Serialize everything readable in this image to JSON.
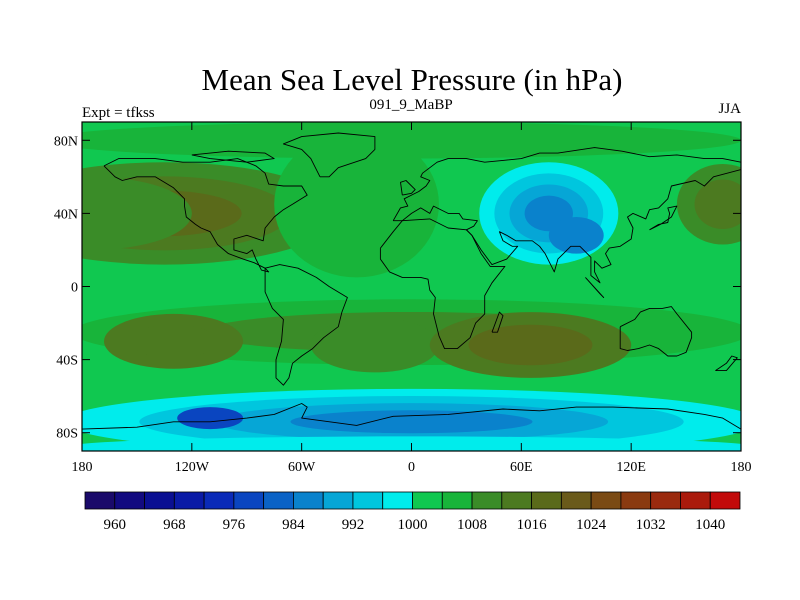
{
  "chart_data": {
    "type": "heatmap",
    "title": "Mean Sea Level Pressure (in hPa)",
    "subtitle_left": "Expt = tfkss",
    "subtitle_center": "091_9_MaBP",
    "subtitle_right": "JJA",
    "xlim": [
      -180,
      180
    ],
    "ylim": [
      -90,
      90
    ],
    "x_ticks": [
      {
        "value": -180,
        "label": "180"
      },
      {
        "value": -120,
        "label": "120W"
      },
      {
        "value": -60,
        "label": "60W"
      },
      {
        "value": 0,
        "label": "0"
      },
      {
        "value": 60,
        "label": "60E"
      },
      {
        "value": 120,
        "label": "120E"
      },
      {
        "value": 180,
        "label": "180"
      }
    ],
    "y_ticks": [
      {
        "value": 80,
        "label": "80N"
      },
      {
        "value": 40,
        "label": "40N"
      },
      {
        "value": 0,
        "label": "0"
      },
      {
        "value": -40,
        "label": "40S"
      },
      {
        "value": -80,
        "label": "80S"
      }
    ],
    "colorbar": {
      "levels": [
        956,
        960,
        964,
        968,
        972,
        976,
        980,
        984,
        988,
        992,
        996,
        1000,
        1004,
        1008,
        1012,
        1016,
        1020,
        1024,
        1028,
        1032,
        1036,
        1040,
        1044
      ],
      "labels": [
        {
          "value": 960,
          "label": "960"
        },
        {
          "value": 968,
          "label": "968"
        },
        {
          "value": 976,
          "label": "976"
        },
        {
          "value": 984,
          "label": "984"
        },
        {
          "value": 992,
          "label": "992"
        },
        {
          "value": 1000,
          "label": "1000"
        },
        {
          "value": 1008,
          "label": "1008"
        },
        {
          "value": 1016,
          "label": "1016"
        },
        {
          "value": 1024,
          "label": "1024"
        },
        {
          "value": 1032,
          "label": "1032"
        },
        {
          "value": 1040,
          "label": "1040"
        }
      ],
      "colors": [
        "#1a0a6a",
        "#120a80",
        "#0a0f92",
        "#0a1aa6",
        "#0a2ab8",
        "#0a45c0",
        "#0a62c6",
        "#0a82cc",
        "#06a6d6",
        "#00c6de",
        "#00ecec",
        "#10c850",
        "#18b43a",
        "#3a8c28",
        "#4c7a20",
        "#5a6a1a",
        "#6a5a1a",
        "#7a4a14",
        "#8a3a10",
        "#9a2a0e",
        "#aa1a0c",
        "#c20a0a"
      ]
    },
    "field": {
      "background": 1002,
      "features": [
        {
          "name": "north-pacific-high",
          "lon": -135,
          "lat": 40,
          "dlon": 95,
          "dlat": 28,
          "bands": [
            1008,
            1012,
            1016
          ]
        },
        {
          "name": "north-atlantic-high",
          "lon": -30,
          "lat": 45,
          "dlon": 45,
          "dlat": 40,
          "bands": [
            1006
          ]
        },
        {
          "name": "pacific-subtropical-ridge",
          "lon": -175,
          "lat": 40,
          "dlon": 55,
          "dlat": 20,
          "bands": [
            1010
          ]
        },
        {
          "name": "north-pacific-west-high",
          "lon": 170,
          "lat": 45,
          "dlon": 25,
          "dlat": 22,
          "bands": [
            1008,
            1014
          ]
        },
        {
          "name": "arctic-ridge",
          "lon": -10,
          "lat": 80,
          "dlon": 190,
          "dlat": 10,
          "bands": [
            1006
          ]
        },
        {
          "name": "asian-low",
          "lon": 75,
          "lat": 40,
          "dlon": 38,
          "dlat": 28,
          "bands": [
            996,
            992,
            988,
            984
          ]
        },
        {
          "name": "asian-low-core",
          "lon": 90,
          "lat": 28,
          "dlon": 15,
          "dlat": 10,
          "bands": [
            984
          ]
        },
        {
          "name": "south-hemisphere-ridge",
          "lon": 0,
          "lat": -25,
          "dlon": 185,
          "dlat": 18,
          "bands": [
            1006,
            1008
          ]
        },
        {
          "name": "south-pacific-high",
          "lon": -130,
          "lat": -30,
          "dlon": 38,
          "dlat": 15,
          "bands": [
            1012,
            1014
          ]
        },
        {
          "name": "south-atlantic-high",
          "lon": -20,
          "lat": -32,
          "dlon": 35,
          "dlat": 15,
          "bands": [
            1010
          ]
        },
        {
          "name": "indian-ocean-high",
          "lon": 65,
          "lat": -32,
          "dlon": 55,
          "dlat": 18,
          "bands": [
            1012,
            1016
          ]
        },
        {
          "name": "southern-trough",
          "lon": 0,
          "lat": -74,
          "dlon": 190,
          "dlat": 18,
          "bands": [
            996,
            992,
            988,
            984
          ]
        },
        {
          "name": "southern-trough-deep",
          "lon": -110,
          "lat": -72,
          "dlon": 18,
          "dlat": 6,
          "bands": [
            976
          ]
        },
        {
          "name": "antarctic-coast",
          "lon": 0,
          "lat": -88,
          "dlon": 190,
          "dlat": 6,
          "bands": [
            996
          ]
        }
      ]
    },
    "coastlines": [
      [
        [
          -168,
          66
        ],
        [
          -160,
          70
        ],
        [
          -140,
          70
        ],
        [
          -125,
          68
        ],
        [
          -110,
          68
        ],
        [
          -95,
          70
        ],
        [
          -85,
          66
        ],
        [
          -80,
          62
        ],
        [
          -78,
          56
        ],
        [
          -70,
          55
        ],
        [
          -60,
          55
        ],
        [
          -57,
          50
        ],
        [
          -65,
          45
        ],
        [
          -70,
          42
        ],
        [
          -75,
          38
        ],
        [
          -80,
          32
        ],
        [
          -81,
          25
        ],
        [
          -90,
          28
        ],
        [
          -97,
          26
        ],
        [
          -97,
          20
        ],
        [
          -90,
          18
        ],
        [
          -87,
          20
        ],
        [
          -85,
          15
        ],
        [
          -82,
          9
        ],
        [
          -78,
          8
        ],
        [
          -80,
          10
        ],
        [
          -86,
          13
        ],
        [
          -92,
          15
        ],
        [
          -100,
          18
        ],
        [
          -106,
          23
        ],
        [
          -110,
          30
        ],
        [
          -115,
          32
        ],
        [
          -118,
          34
        ],
        [
          -123,
          38
        ],
        [
          -124,
          44
        ],
        [
          -124,
          48
        ],
        [
          -130,
          54
        ],
        [
          -140,
          60
        ],
        [
          -150,
          60
        ],
        [
          -158,
          58
        ],
        [
          -162,
          60
        ],
        [
          -165,
          63
        ],
        [
          -168,
          66
        ]
      ],
      [
        [
          -80,
          10
        ],
        [
          -72,
          12
        ],
        [
          -62,
          10
        ],
        [
          -52,
          5
        ],
        [
          -45,
          0
        ],
        [
          -35,
          -6
        ],
        [
          -38,
          -14
        ],
        [
          -40,
          -22
        ],
        [
          -48,
          -28
        ],
        [
          -54,
          -34
        ],
        [
          -60,
          -38
        ],
        [
          -65,
          -42
        ],
        [
          -67,
          -50
        ],
        [
          -70,
          -54
        ],
        [
          -74,
          -50
        ],
        [
          -74,
          -40
        ],
        [
          -71,
          -30
        ],
        [
          -70,
          -18
        ],
        [
          -76,
          -12
        ],
        [
          -80,
          -3
        ],
        [
          -80,
          10
        ]
      ],
      [
        [
          -10,
          36
        ],
        [
          -6,
          43
        ],
        [
          -2,
          44
        ],
        [
          -4,
          48
        ],
        [
          0,
          50
        ],
        [
          4,
          52
        ],
        [
          8,
          55
        ],
        [
          10,
          58
        ],
        [
          5,
          60
        ],
        [
          6,
          62
        ],
        [
          14,
          68
        ],
        [
          20,
          70
        ],
        [
          30,
          70
        ],
        [
          40,
          68
        ],
        [
          50,
          69
        ],
        [
          60,
          70
        ],
        [
          70,
          73
        ],
        [
          80,
          73
        ],
        [
          100,
          76
        ],
        [
          115,
          74
        ],
        [
          130,
          71
        ],
        [
          145,
          72
        ],
        [
          160,
          70
        ],
        [
          170,
          70
        ],
        [
          180,
          68
        ],
        [
          180,
          64
        ],
        [
          165,
          60
        ],
        [
          160,
          55
        ],
        [
          155,
          58
        ],
        [
          142,
          55
        ],
        [
          140,
          48
        ],
        [
          135,
          43
        ],
        [
          130,
          42
        ],
        [
          128,
          37
        ],
        [
          121,
          40
        ],
        [
          118,
          38
        ],
        [
          121,
          32
        ],
        [
          120,
          26
        ],
        [
          114,
          22
        ],
        [
          108,
          21
        ],
        [
          106,
          18
        ],
        [
          109,
          12
        ],
        [
          104,
          10
        ],
        [
          100,
          14
        ],
        [
          100,
          8
        ],
        [
          103,
          2
        ],
        [
          98,
          6
        ],
        [
          98,
          16
        ],
        [
          92,
          22
        ],
        [
          87,
          22
        ],
        [
          80,
          15
        ],
        [
          78,
          8
        ],
        [
          73,
          18
        ],
        [
          70,
          22
        ],
        [
          66,
          25
        ],
        [
          57,
          25
        ],
        [
          52,
          28
        ],
        [
          48,
          30
        ],
        [
          50,
          25
        ],
        [
          55,
          22
        ],
        [
          58,
          22
        ],
        [
          52,
          15
        ],
        [
          44,
          12
        ],
        [
          38,
          20
        ],
        [
          33,
          28
        ],
        [
          30,
          31
        ],
        [
          34,
          33
        ],
        [
          36,
          36
        ],
        [
          28,
          37
        ],
        [
          26,
          40
        ],
        [
          20,
          40
        ],
        [
          12,
          44
        ],
        [
          10,
          40
        ],
        [
          5,
          43
        ],
        [
          0,
          40
        ],
        [
          -5,
          36
        ],
        [
          -10,
          36
        ]
      ],
      [
        [
          -17,
          21
        ],
        [
          -17,
          15
        ],
        [
          -12,
          8
        ],
        [
          -5,
          5
        ],
        [
          5,
          5
        ],
        [
          9,
          4
        ],
        [
          10,
          -2
        ],
        [
          13,
          -6
        ],
        [
          12,
          -15
        ],
        [
          15,
          -27
        ],
        [
          18,
          -34
        ],
        [
          25,
          -34
        ],
        [
          32,
          -28
        ],
        [
          35,
          -20
        ],
        [
          40,
          -15
        ],
        [
          40,
          -5
        ],
        [
          44,
          2
        ],
        [
          51,
          11
        ],
        [
          43,
          11
        ],
        [
          38,
          18
        ],
        [
          33,
          28
        ],
        [
          30,
          31
        ],
        [
          20,
          32
        ],
        [
          10,
          37
        ],
        [
          -5,
          36
        ],
        [
          -10,
          30
        ],
        [
          -17,
          21
        ]
      ],
      [
        [
          114,
          -22
        ],
        [
          114,
          -34
        ],
        [
          118,
          -35
        ],
        [
          124,
          -34
        ],
        [
          130,
          -32
        ],
        [
          135,
          -34
        ],
        [
          140,
          -38
        ],
        [
          145,
          -38
        ],
        [
          150,
          -36
        ],
        [
          153,
          -28
        ],
        [
          153,
          -25
        ],
        [
          145,
          -15
        ],
        [
          142,
          -11
        ],
        [
          137,
          -12
        ],
        [
          130,
          -12
        ],
        [
          125,
          -14
        ],
        [
          122,
          -18
        ],
        [
          114,
          -22
        ]
      ],
      [
        [
          -180,
          -78
        ],
        [
          -150,
          -77
        ],
        [
          -130,
          -74
        ],
        [
          -110,
          -74
        ],
        [
          -90,
          -72
        ],
        [
          -75,
          -70
        ],
        [
          -60,
          -64
        ],
        [
          -57,
          -66
        ],
        [
          -60,
          -72
        ],
        [
          -30,
          -76
        ],
        [
          -10,
          -71
        ],
        [
          20,
          -70
        ],
        [
          50,
          -67
        ],
        [
          70,
          -68
        ],
        [
          90,
          -66
        ],
        [
          110,
          -66
        ],
        [
          140,
          -67
        ],
        [
          160,
          -70
        ],
        [
          170,
          -72
        ],
        [
          180,
          -78
        ]
      ],
      [
        [
          -50,
          60
        ],
        [
          -45,
          60
        ],
        [
          -40,
          65
        ],
        [
          -25,
          70
        ],
        [
          -20,
          75
        ],
        [
          -20,
          82
        ],
        [
          -40,
          84
        ],
        [
          -60,
          82
        ],
        [
          -70,
          78
        ],
        [
          -60,
          75
        ],
        [
          -55,
          70
        ],
        [
          -50,
          60
        ]
      ],
      [
        [
          -5,
          50
        ],
        [
          0,
          51
        ],
        [
          2,
          53
        ],
        [
          -3,
          58
        ],
        [
          -6,
          57
        ],
        [
          -5,
          50
        ]
      ],
      [
        [
          130,
          31
        ],
        [
          135,
          34
        ],
        [
          140,
          35
        ],
        [
          141,
          40
        ],
        [
          140,
          43
        ],
        [
          145,
          44
        ],
        [
          142,
          38
        ],
        [
          136,
          34
        ],
        [
          130,
          31
        ]
      ],
      [
        [
          166,
          -46
        ],
        [
          172,
          -42
        ],
        [
          175,
          -38
        ],
        [
          178,
          -39
        ],
        [
          172,
          -46
        ],
        [
          166,
          -46
        ]
      ],
      [
        [
          44,
          -25
        ],
        [
          48,
          -14
        ],
        [
          50,
          -16
        ],
        [
          47,
          -25
        ],
        [
          44,
          -25
        ]
      ],
      [
        [
          95,
          5
        ],
        [
          105,
          -6
        ],
        [
          103,
          -4
        ],
        [
          95,
          5
        ]
      ],
      [
        [
          -120,
          72
        ],
        [
          -100,
          74
        ],
        [
          -80,
          73
        ],
        [
          -75,
          70
        ],
        [
          -90,
          68
        ],
        [
          -110,
          70
        ],
        [
          -120,
          72
        ]
      ]
    ]
  }
}
